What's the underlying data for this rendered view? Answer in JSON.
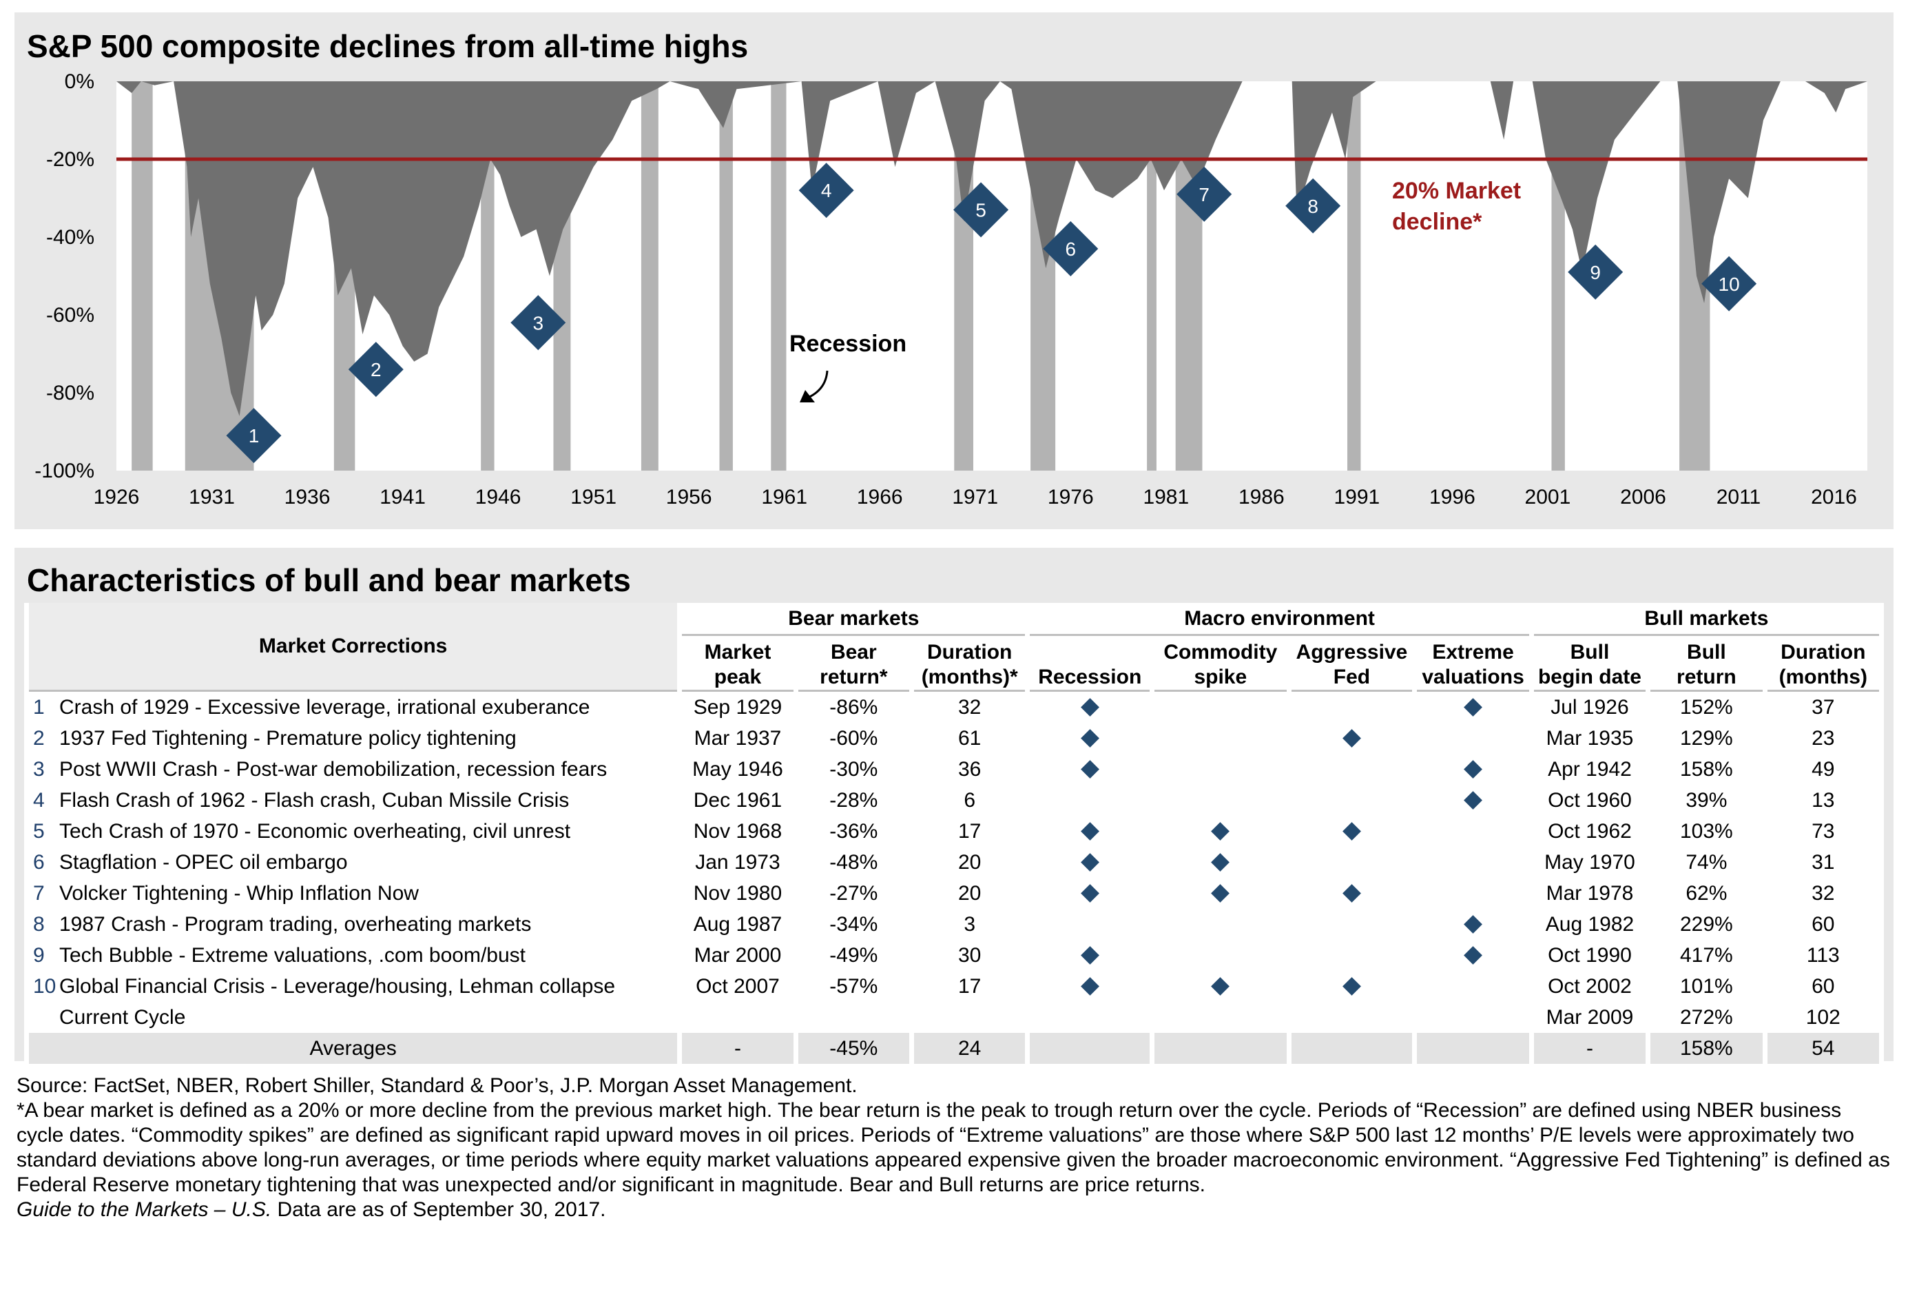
{
  "chart_data": {
    "type": "area",
    "title": "S&P 500 composite declines from all-time highs",
    "xlim": [
      1926,
      2017.75
    ],
    "ylim": [
      -100,
      0
    ],
    "x_ticks": [
      1926,
      1931,
      1936,
      1941,
      1946,
      1951,
      1956,
      1961,
      1966,
      1971,
      1976,
      1981,
      1986,
      1991,
      1996,
      2001,
      2006,
      2011,
      2016
    ],
    "y_ticks": [
      {
        "value": 0,
        "label": "0%"
      },
      {
        "value": -20,
        "label": "-20%"
      },
      {
        "value": -40,
        "label": "-40%"
      },
      {
        "value": -60,
        "label": "-60%"
      },
      {
        "value": -80,
        "label": "-80%"
      },
      {
        "value": -100,
        "label": "-100%"
      }
    ],
    "drawdown": {
      "x": [
        1926,
        1926.8,
        1927.3,
        1928,
        1929.0,
        1929.7,
        1929.9,
        1930.3,
        1930.9,
        1931.5,
        1932.0,
        1932.45,
        1932.9,
        1933.3,
        1933.6,
        1934.2,
        1934.8,
        1935.5,
        1936.3,
        1937.1,
        1937.6,
        1938.3,
        1938.9,
        1939.5,
        1940.3,
        1941.0,
        1941.6,
        1942.3,
        1942.9,
        1943.5,
        1944.2,
        1945.0,
        1945.6,
        1946.1,
        1946.6,
        1947.2,
        1948.0,
        1948.7,
        1949.4,
        1950.2,
        1951.0,
        1952.0,
        1953.0,
        1954.3,
        1955.0,
        1956.5,
        1957.8,
        1958.5,
        1961.9,
        1962.45,
        1963.4,
        1965.9,
        1966.8,
        1967.9,
        1968.9,
        1970.0,
        1970.4,
        1971.5,
        1972.3,
        1972.9,
        1973.6,
        1974.7,
        1975.4,
        1976.3,
        1977.3,
        1978.2,
        1979.5,
        1980.2,
        1980.9,
        1981.8,
        1982.6,
        1983.6,
        1985.0,
        1987.6,
        1987.85,
        1988.6,
        1989.7,
        1990.4,
        1990.8,
        1992.0,
        1994.0,
        1998.0,
        1998.7,
        1999.2,
        2000.2,
        2000.9,
        2001.7,
        2002.3,
        2002.8,
        2003.6,
        2004.5,
        2005.6,
        2006.9,
        2007.8,
        2008.4,
        2008.8,
        2009.2,
        2009.7,
        2010.5,
        2011.5,
        2012.3,
        2013.2,
        2014.5,
        2015.5,
        2016.1,
        2016.6,
        2017.75
      ],
      "y": [
        0,
        -3,
        0,
        -1,
        0,
        -22,
        -40,
        -30,
        -52,
        -66,
        -80,
        -86,
        -70,
        -55,
        -64,
        -60,
        -52,
        -30,
        -22,
        -35,
        -55,
        -48,
        -65,
        -55,
        -60,
        -68,
        -72,
        -70,
        -58,
        -52,
        -45,
        -32,
        -20,
        -24,
        -32,
        -40,
        -38,
        -50,
        -38,
        -30,
        -22,
        -15,
        -5,
        -2,
        0,
        -2,
        -12,
        -2,
        0,
        -28,
        -5,
        0,
        -22,
        -3,
        0,
        -20,
        -36,
        -5,
        0,
        -2,
        -20,
        -48,
        -35,
        -20,
        -28,
        -30,
        -25,
        -20,
        -28,
        -20,
        -27,
        -15,
        0,
        0,
        -34,
        -22,
        -8,
        -20,
        -4,
        0,
        0,
        0,
        -15,
        0,
        0,
        -20,
        -30,
        -38,
        -49,
        -30,
        -15,
        -8,
        0,
        0,
        -30,
        -50,
        -57,
        -40,
        -25,
        -30,
        -10,
        0,
        0,
        -3,
        -8,
        -2,
        0
      ]
    },
    "recessions": [
      [
        1926.8,
        1927.9
      ],
      [
        1929.6,
        1933.2
      ],
      [
        1937.4,
        1938.5
      ],
      [
        1945.1,
        1945.8
      ],
      [
        1948.9,
        1949.8
      ],
      [
        1953.5,
        1954.4
      ],
      [
        1957.6,
        1958.3
      ],
      [
        1960.3,
        1961.1
      ],
      [
        1969.9,
        1970.9
      ],
      [
        1973.9,
        1975.2
      ],
      [
        1980.0,
        1980.5
      ],
      [
        1981.5,
        1982.9
      ],
      [
        1990.5,
        1991.2
      ],
      [
        2001.2,
        2001.9
      ],
      [
        2007.9,
        2009.5
      ]
    ],
    "threshold": {
      "value": -20,
      "label_line1": "20% Market",
      "label_line2": "decline*"
    },
    "recession_label": "Recession",
    "markers": [
      {
        "n": "1",
        "x": 1933.2,
        "y": -91
      },
      {
        "n": "2",
        "x": 1939.6,
        "y": -74
      },
      {
        "n": "3",
        "x": 1948.1,
        "y": -62
      },
      {
        "n": "4",
        "x": 1963.2,
        "y": -28
      },
      {
        "n": "5",
        "x": 1971.3,
        "y": -33
      },
      {
        "n": "6",
        "x": 1976.0,
        "y": -43
      },
      {
        "n": "7",
        "x": 1983.0,
        "y": -29
      },
      {
        "n": "8",
        "x": 1988.7,
        "y": -32
      },
      {
        "n": "9",
        "x": 2003.5,
        "y": -49
      },
      {
        "n": "10",
        "x": 2010.5,
        "y": -52
      }
    ],
    "colors": {
      "area": "#707070",
      "recession": "#b3b3b3",
      "threshold": "#9c1b1b",
      "marker": "#234a6f",
      "panel": "#e8e8e8"
    }
  },
  "table": {
    "title": "Characteristics of bull and bear markets",
    "groups": {
      "bear": "Bear markets",
      "macro": "Macro environment",
      "bull": "Bull markets"
    },
    "headers": {
      "corrections": "Market Corrections",
      "peak": [
        "Market",
        "peak"
      ],
      "bear_return": [
        "Bear",
        "return*"
      ],
      "bear_duration": [
        "Duration",
        "(months)*"
      ],
      "recession": "Recession",
      "commodity": [
        "Commodity",
        "spike"
      ],
      "fed": [
        "Aggressive",
        "Fed"
      ],
      "valuations": [
        "Extreme",
        "valuations"
      ],
      "bull_begin": [
        "Bull",
        "begin date"
      ],
      "bull_return": [
        "Bull",
        "return"
      ],
      "bull_duration": [
        "Duration",
        "(months)"
      ]
    },
    "rows": [
      {
        "n": "1",
        "name": "Crash of 1929 - Excessive leverage, irrational exuberance",
        "peak": "Sep 1929",
        "bear_return": "-86%",
        "duration": "32",
        "recession": true,
        "commodity": false,
        "fed": false,
        "valuations": true,
        "bull_begin": "Jul 1926",
        "bull_return": "152%",
        "bull_duration": "37"
      },
      {
        "n": "2",
        "name": "1937 Fed Tightening - Premature policy tightening",
        "peak": "Mar 1937",
        "bear_return": "-60%",
        "duration": "61",
        "recession": true,
        "commodity": false,
        "fed": true,
        "valuations": false,
        "bull_begin": "Mar 1935",
        "bull_return": "129%",
        "bull_duration": "23"
      },
      {
        "n": "3",
        "name": "Post WWII Crash - Post-war demobilization, recession fears",
        "peak": "May 1946",
        "bear_return": "-30%",
        "duration": "36",
        "recession": true,
        "commodity": false,
        "fed": false,
        "valuations": true,
        "bull_begin": "Apr 1942",
        "bull_return": "158%",
        "bull_duration": "49"
      },
      {
        "n": "4",
        "name": "Flash Crash of 1962 - Flash crash, Cuban Missile Crisis",
        "peak": "Dec 1961",
        "bear_return": "-28%",
        "duration": "6",
        "recession": false,
        "commodity": false,
        "fed": false,
        "valuations": true,
        "bull_begin": "Oct 1960",
        "bull_return": "39%",
        "bull_duration": "13"
      },
      {
        "n": "5",
        "name": "Tech Crash of 1970 - Economic overheating, civil unrest",
        "peak": "Nov 1968",
        "bear_return": "-36%",
        "duration": "17",
        "recession": true,
        "commodity": true,
        "fed": true,
        "valuations": false,
        "bull_begin": "Oct 1962",
        "bull_return": "103%",
        "bull_duration": "73"
      },
      {
        "n": "6",
        "name": "Stagflation - OPEC oil embargo",
        "peak": "Jan 1973",
        "bear_return": "-48%",
        "duration": "20",
        "recession": true,
        "commodity": true,
        "fed": false,
        "valuations": false,
        "bull_begin": "May 1970",
        "bull_return": "74%",
        "bull_duration": "31"
      },
      {
        "n": "7",
        "name": "Volcker Tightening - Whip Inflation Now",
        "peak": "Nov 1980",
        "bear_return": "-27%",
        "duration": "20",
        "recession": true,
        "commodity": true,
        "fed": true,
        "valuations": false,
        "bull_begin": "Mar 1978",
        "bull_return": "62%",
        "bull_duration": "32"
      },
      {
        "n": "8",
        "name": "1987 Crash - Program trading, overheating markets",
        "peak": "Aug 1987",
        "bear_return": "-34%",
        "duration": "3",
        "recession": false,
        "commodity": false,
        "fed": false,
        "valuations": true,
        "bull_begin": "Aug 1982",
        "bull_return": "229%",
        "bull_duration": "60"
      },
      {
        "n": "9",
        "name": "Tech Bubble - Extreme valuations, .com boom/bust",
        "peak": "Mar 2000",
        "bear_return": "-49%",
        "duration": "30",
        "recession": true,
        "commodity": false,
        "fed": false,
        "valuations": true,
        "bull_begin": "Oct 1990",
        "bull_return": "417%",
        "bull_duration": "113"
      },
      {
        "n": "10",
        "name": "Global Financial Crisis - Leverage/housing, Lehman collapse",
        "peak": "Oct 2007",
        "bear_return": "-57%",
        "duration": "17",
        "recession": true,
        "commodity": true,
        "fed": true,
        "valuations": false,
        "bull_begin": "Oct 2002",
        "bull_return": "101%",
        "bull_duration": "60"
      }
    ],
    "current": {
      "name": "Current Cycle",
      "bull_begin": "Mar 2009",
      "bull_return": "272%",
      "bull_duration": "102"
    },
    "averages": {
      "label": "Averages",
      "peak": "-",
      "bear_return": "-45%",
      "duration": "24",
      "bull_begin": "-",
      "bull_return": "158%",
      "bull_duration": "54"
    }
  },
  "footnotes": {
    "source": "Source: FactSet, NBER, Robert Shiller, Standard & Poor’s, J.P. Morgan Asset Management.",
    "definition": "*A bear market is defined as a 20% or more decline from the previous market high. The bear return is the peak to trough return over the cycle. Periods of “Recession” are defined using NBER business cycle dates. “Commodity spikes” are defined as significant rapid upward moves in oil prices. Periods of “Extreme valuations” are those where S&P 500 last 12 months’ P/E levels were approximately two standard deviations above long-run averages, or time periods where equity market valuations appeared expensive given the broader macroeconomic environment. “Aggressive Fed Tightening” is defined as Federal Reserve monetary tightening that was unexpected and/or significant in magnitude. Bear and Bull returns are price returns.",
    "guide_italic": "Guide to the Markets – U.S.",
    "as_of": " Data are as of September 30, 2017."
  }
}
